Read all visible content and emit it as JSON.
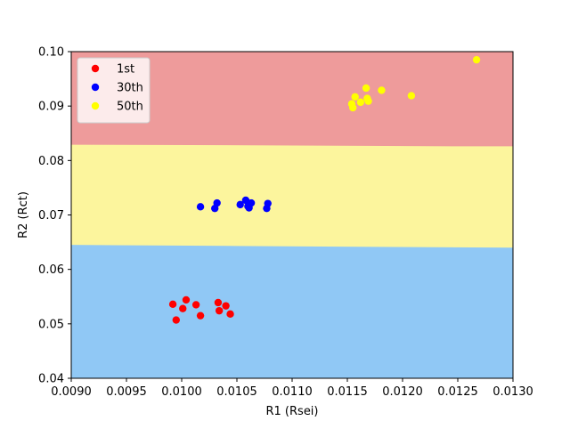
{
  "chart_data": {
    "type": "scatter",
    "title": "",
    "xlabel": "R1 (Rsei)",
    "ylabel": "R2 (Rct)",
    "xlim": [
      0.009,
      0.013
    ],
    "ylim": [
      0.04,
      0.1
    ],
    "x_ticks": [
      "0.0090",
      "0.0095",
      "0.0100",
      "0.0105",
      "0.0110",
      "0.0115",
      "0.0120",
      "0.0125",
      "0.0130"
    ],
    "y_ticks": [
      "0.04",
      "0.05",
      "0.06",
      "0.07",
      "0.08",
      "0.09",
      "0.10"
    ],
    "grid": false,
    "legend_position": "upper-left",
    "background_regions": [
      {
        "color": "#90c8f5",
        "boundary": [
          [
            0.009,
            0.0645
          ],
          [
            0.0105,
            0.0643
          ],
          [
            0.0121,
            0.0641
          ],
          [
            0.013,
            0.064
          ]
        ]
      },
      {
        "color": "#fcf59d",
        "boundary": [
          [
            0.009,
            0.0829
          ],
          [
            0.0106,
            0.0828
          ],
          [
            0.0125,
            0.0826
          ],
          [
            0.013,
            0.0826
          ]
        ]
      },
      {
        "color": "#ee9b9b",
        "boundary": [
          [
            0.009,
            0.1
          ],
          [
            0.013,
            0.1
          ]
        ]
      }
    ],
    "series": [
      {
        "name": "1st",
        "color": "#ff0000",
        "points": [
          [
            0.00992,
            0.0536
          ],
          [
            0.00995,
            0.0507
          ],
          [
            0.01001,
            0.0528
          ],
          [
            0.01004,
            0.0544
          ],
          [
            0.01013,
            0.0535
          ],
          [
            0.01017,
            0.0515
          ],
          [
            0.01033,
            0.0539
          ],
          [
            0.01034,
            0.0524
          ],
          [
            0.0104,
            0.0533
          ],
          [
            0.01044,
            0.0518
          ]
        ]
      },
      {
        "name": "30th",
        "color": "#0000ff",
        "points": [
          [
            0.01017,
            0.0715
          ],
          [
            0.0103,
            0.0712
          ],
          [
            0.01032,
            0.0722
          ],
          [
            0.01053,
            0.0719
          ],
          [
            0.01058,
            0.0727
          ],
          [
            0.0106,
            0.0716
          ],
          [
            0.01061,
            0.0713
          ],
          [
            0.01063,
            0.0722
          ],
          [
            0.01077,
            0.0712
          ],
          [
            0.01078,
            0.0721
          ]
        ]
      },
      {
        "name": "50th",
        "color": "#ffff00",
        "points": [
          [
            0.01154,
            0.0904
          ],
          [
            0.01155,
            0.0897
          ],
          [
            0.01157,
            0.0917
          ],
          [
            0.01162,
            0.0907
          ],
          [
            0.01167,
            0.0933
          ],
          [
            0.01168,
            0.0914
          ],
          [
            0.01169,
            0.0909
          ],
          [
            0.01181,
            0.0929
          ],
          [
            0.01208,
            0.0919
          ],
          [
            0.01267,
            0.0985
          ]
        ]
      }
    ]
  }
}
